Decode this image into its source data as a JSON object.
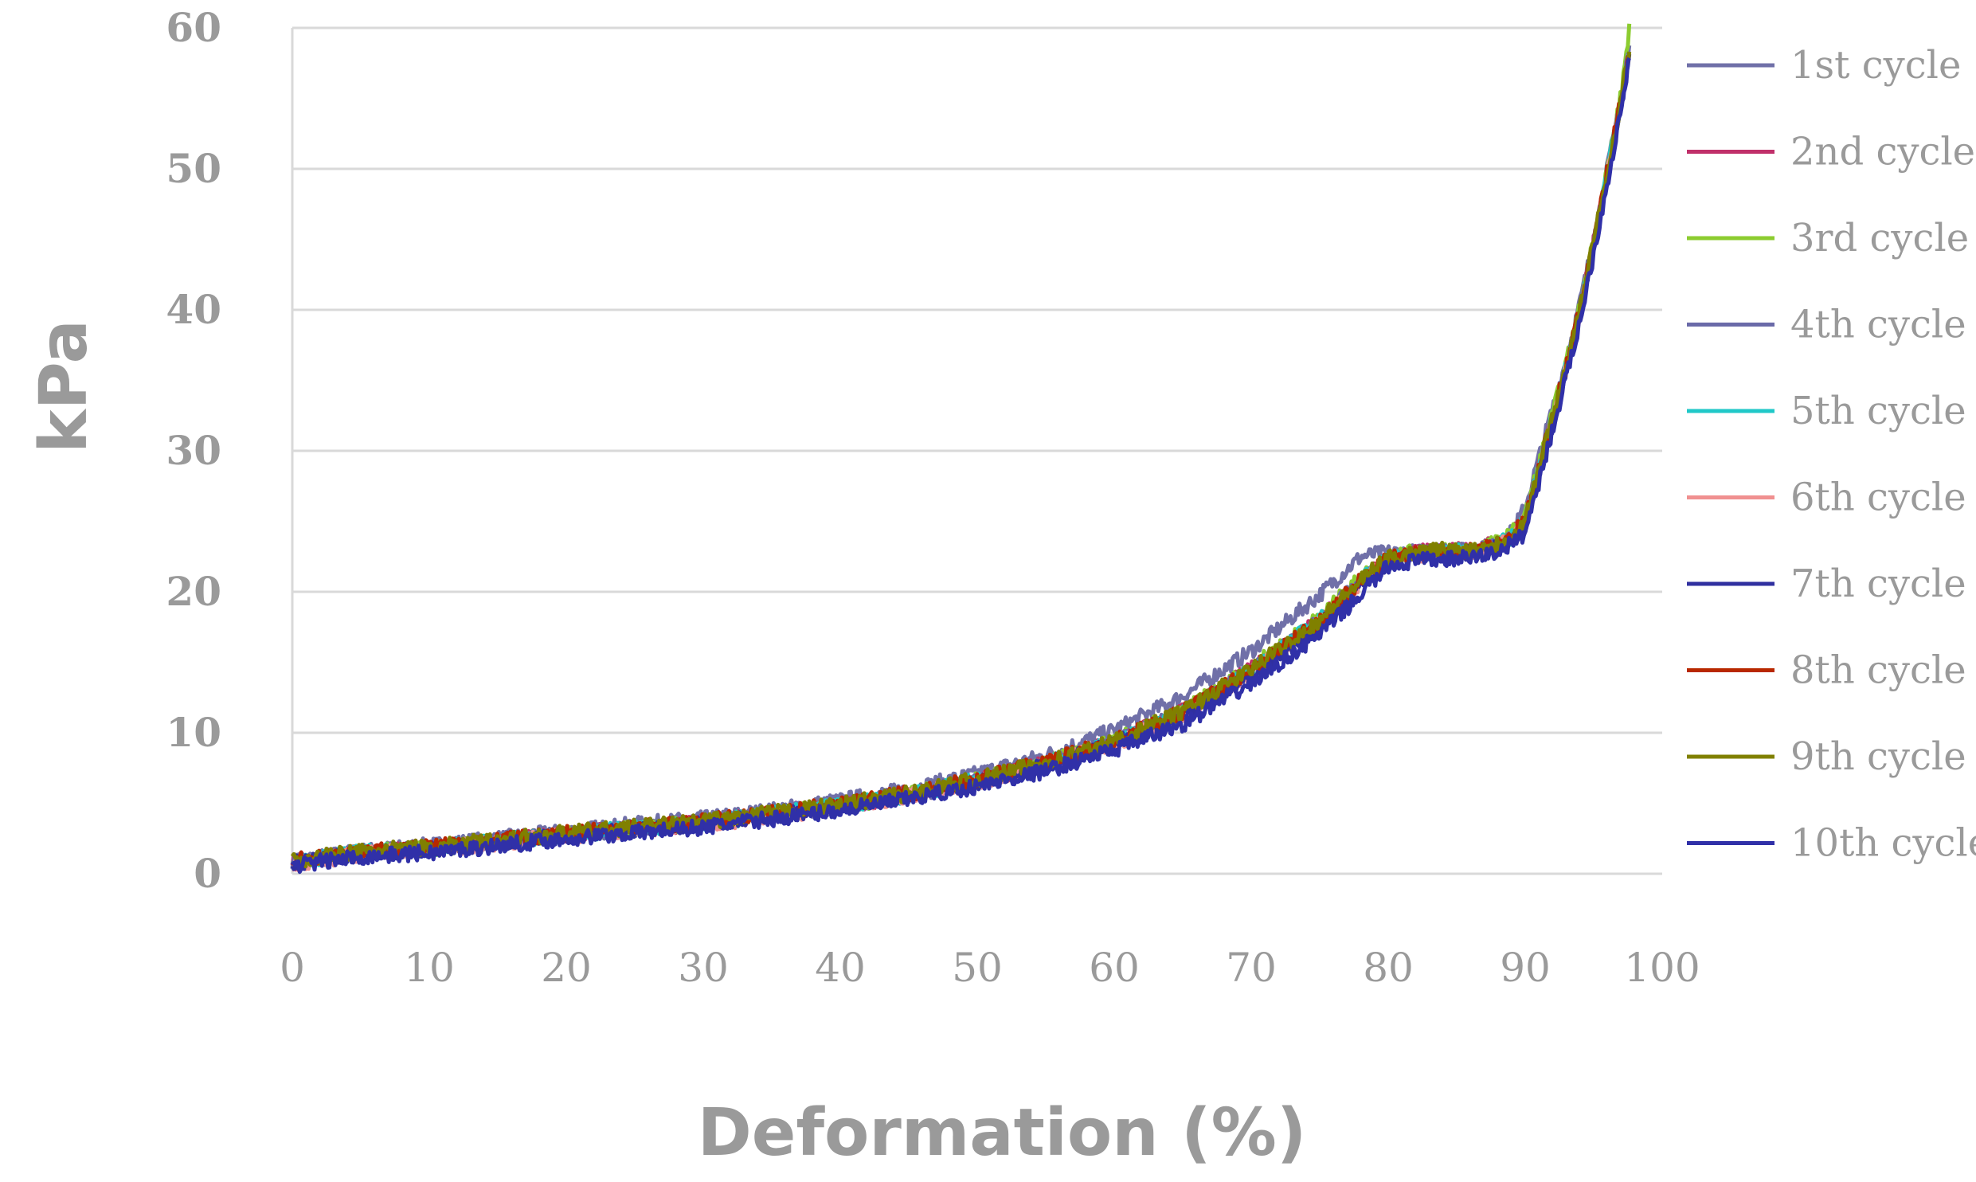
{
  "chart_data": {
    "type": "line",
    "xlabel": "Deformation (%)",
    "ylabel": "kPa",
    "xlim": [
      0,
      100
    ],
    "ylim": [
      0,
      60
    ],
    "xticks": [
      "0",
      "10",
      "20",
      "30",
      "40",
      "50",
      "60",
      "70",
      "80",
      "90",
      "100"
    ],
    "yticks": [
      "0",
      "10",
      "20",
      "30",
      "40",
      "50",
      "60"
    ],
    "grid": "horizontal",
    "legend_position": "right",
    "x": [
      0,
      5,
      10,
      15,
      20,
      25,
      30,
      35,
      40,
      45,
      50,
      55,
      60,
      65,
      70,
      75,
      78,
      80,
      82,
      84,
      86,
      88,
      89,
      90,
      91,
      92,
      93,
      94,
      95,
      96,
      97,
      97.6
    ],
    "series": [
      {
        "name": "1st cycle",
        "color": "#7070a8",
        "values": [
          0.9,
          1.6,
          2.0,
          2.5,
          3.0,
          3.5,
          3.9,
          4.5,
          5.2,
          6.0,
          7.1,
          8.4,
          10.2,
          12.6,
          15.8,
          19.8,
          22.5,
          22.8,
          22.8,
          22.9,
          22.9,
          23.4,
          24.2,
          26.0,
          29.5,
          33.0,
          36.5,
          40.5,
          45.0,
          50.0,
          55.0,
          58.5
        ]
      },
      {
        "name": "2nd cycle",
        "color": "#c0306a",
        "values": [
          0.8,
          1.5,
          1.8,
          2.3,
          2.8,
          3.2,
          3.6,
          4.2,
          4.8,
          5.6,
          6.6,
          7.8,
          9.4,
          11.5,
          14.5,
          18.0,
          20.8,
          22.4,
          22.8,
          22.9,
          23.0,
          23.4,
          24.0,
          25.2,
          28.8,
          32.5,
          36.0,
          40.0,
          44.8,
          49.8,
          55.0,
          58.6
        ]
      },
      {
        "name": "3rd cycle",
        "color": "#8ccc30",
        "values": [
          0.8,
          1.5,
          1.8,
          2.3,
          2.8,
          3.2,
          3.6,
          4.2,
          4.8,
          5.6,
          6.6,
          7.8,
          9.4,
          11.5,
          14.6,
          18.2,
          21.0,
          22.5,
          22.8,
          22.9,
          23.0,
          23.5,
          24.1,
          25.4,
          29.0,
          32.6,
          36.2,
          40.2,
          45.0,
          50.0,
          55.2,
          60.0
        ]
      },
      {
        "name": "4th cycle",
        "color": "#6a6aa8",
        "values": [
          0.8,
          1.5,
          1.8,
          2.3,
          2.8,
          3.2,
          3.6,
          4.2,
          4.8,
          5.6,
          6.6,
          7.8,
          9.3,
          11.4,
          14.4,
          18.0,
          20.8,
          22.3,
          22.7,
          22.8,
          22.9,
          23.3,
          23.9,
          25.0,
          28.6,
          32.3,
          35.9,
          39.9,
          44.7,
          49.7,
          54.8,
          58.4
        ]
      },
      {
        "name": "5th cycle",
        "color": "#20c8c8",
        "values": [
          0.8,
          1.5,
          1.8,
          2.3,
          2.8,
          3.2,
          3.6,
          4.2,
          4.8,
          5.6,
          6.6,
          7.8,
          9.3,
          11.4,
          14.4,
          18.0,
          20.8,
          22.3,
          22.7,
          22.8,
          22.9,
          23.3,
          23.9,
          25.0,
          28.6,
          32.3,
          35.9,
          39.9,
          44.7,
          49.7,
          54.8,
          58.4
        ]
      },
      {
        "name": "6th cycle",
        "color": "#f09090",
        "values": [
          0.7,
          1.4,
          1.7,
          2.2,
          2.7,
          3.1,
          3.5,
          4.1,
          4.7,
          5.5,
          6.5,
          7.7,
          9.2,
          11.3,
          14.2,
          17.8,
          20.6,
          22.2,
          22.6,
          22.7,
          22.8,
          23.2,
          23.8,
          24.8,
          28.4,
          32.1,
          35.7,
          39.7,
          44.5,
          49.5,
          54.6,
          58.2
        ]
      },
      {
        "name": "7th cycle",
        "color": "#3030a0",
        "values": [
          0.7,
          1.4,
          1.7,
          2.2,
          2.7,
          3.1,
          3.5,
          4.1,
          4.7,
          5.5,
          6.5,
          7.7,
          9.2,
          11.2,
          14.1,
          17.6,
          20.4,
          22.1,
          22.5,
          22.6,
          22.8,
          23.1,
          23.7,
          24.6,
          28.2,
          31.9,
          35.5,
          39.5,
          44.3,
          49.3,
          54.4,
          58.0
        ]
      },
      {
        "name": "8th cycle",
        "color": "#b82800",
        "values": [
          0.9,
          1.6,
          1.9,
          2.4,
          2.9,
          3.3,
          3.7,
          4.3,
          4.9,
          5.7,
          6.7,
          7.9,
          9.4,
          11.5,
          14.5,
          18.0,
          20.8,
          22.4,
          22.8,
          22.9,
          23.0,
          23.4,
          24.0,
          25.1,
          28.7,
          32.4,
          36.0,
          40.0,
          44.8,
          49.8,
          54.9,
          58.5
        ]
      },
      {
        "name": "9th cycle",
        "color": "#808000",
        "values": [
          0.9,
          1.6,
          1.9,
          2.4,
          2.9,
          3.3,
          3.7,
          4.3,
          4.9,
          5.7,
          6.7,
          7.9,
          9.4,
          11.5,
          14.5,
          18.0,
          20.8,
          22.4,
          22.8,
          23.0,
          23.0,
          23.4,
          24.0,
          25.1,
          28.7,
          32.4,
          36.0,
          40.0,
          44.8,
          49.8,
          54.9,
          58.5
        ]
      },
      {
        "name": "10th cycle",
        "color": "#3030a8",
        "values": [
          0.6,
          1.2,
          1.5,
          2.0,
          2.5,
          2.9,
          3.3,
          3.9,
          4.5,
          5.3,
          6.2,
          7.3,
          8.8,
          10.6,
          13.5,
          17.0,
          19.8,
          21.8,
          22.2,
          22.3,
          22.4,
          22.8,
          23.4,
          24.2,
          27.8,
          31.5,
          35.2,
          39.2,
          44.0,
          49.0,
          54.2,
          57.8
        ]
      }
    ]
  }
}
